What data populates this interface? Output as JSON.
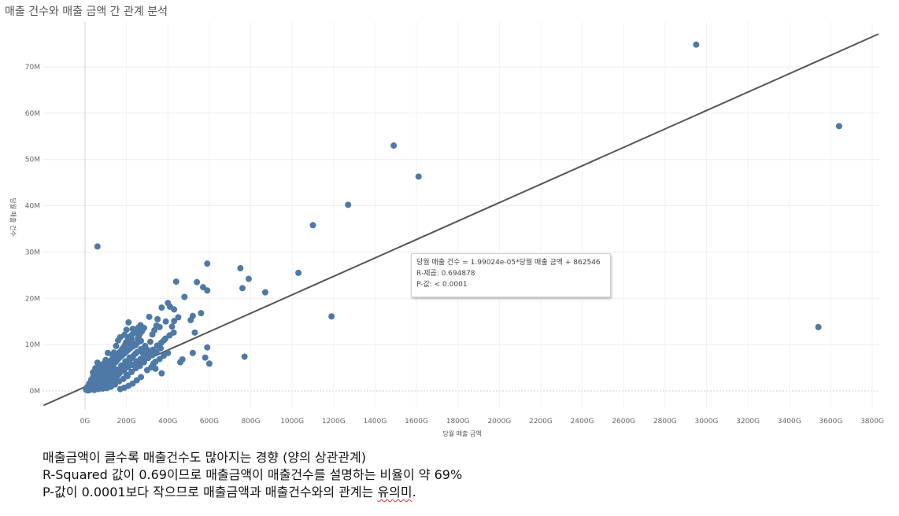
{
  "page": {
    "title": "매출 건수와 매출 금액 간 관계 분석"
  },
  "chart_data": {
    "type": "scatter",
    "title": "매출 건수와 매출 금액 간 관계 분석",
    "xlabel": "당월 매출 금액",
    "ylabel": "당월 매출 건수",
    "xlim": [
      -200,
      3850
    ],
    "ylim": [
      -3,
      78
    ],
    "x_ticks": [
      "0G",
      "200G",
      "400G",
      "600G",
      "800G",
      "1000G",
      "1200G",
      "1400G",
      "1600G",
      "1800G",
      "2000G",
      "2200G",
      "2400G",
      "2600G",
      "2800G",
      "3000G",
      "3200G",
      "3400G",
      "3600G",
      "3800G"
    ],
    "x_tick_values": [
      0,
      200,
      400,
      600,
      800,
      1000,
      1200,
      1400,
      1600,
      1800,
      2000,
      2200,
      2400,
      2600,
      2800,
      3000,
      3200,
      3400,
      3600,
      3800
    ],
    "y_ticks": [
      "0M",
      "10M",
      "20M",
      "30M",
      "40M",
      "50M",
      "60M",
      "70M"
    ],
    "y_tick_values": [
      0,
      10,
      20,
      30,
      40,
      50,
      60,
      70
    ],
    "grid": true,
    "color": "#4e79a7",
    "trendline": {
      "equation": "당월 매출 건수 = 1.99024e-05*당월 매출 금액 + 862546",
      "r_squared": "R-제곱: 0.694878",
      "p_value": "P-값: < 0.0001",
      "slope_per_G": 0.0199024,
      "intercept_M": 0.862546
    },
    "points": [
      [
        2950,
        74.8
      ],
      [
        3640,
        57.2
      ],
      [
        3540,
        13.8
      ],
      [
        1490,
        53
      ],
      [
        1610,
        46.3
      ],
      [
        1270,
        40.2
      ],
      [
        1100,
        35.8
      ],
      [
        1030,
        25.5
      ],
      [
        1190,
        16.1
      ],
      [
        60,
        31.2
      ],
      [
        590,
        27.5
      ],
      [
        750,
        26.5
      ],
      [
        790,
        24.2
      ],
      [
        760,
        22.2
      ],
      [
        870,
        21.3
      ],
      [
        770,
        7.4
      ],
      [
        440,
        23.6
      ],
      [
        540,
        23.5
      ],
      [
        570,
        22.4
      ],
      [
        590,
        21.7
      ],
      [
        480,
        20.3
      ],
      [
        400,
        19
      ],
      [
        410,
        18.2
      ],
      [
        370,
        18
      ],
      [
        430,
        17.6
      ],
      [
        560,
        16.8
      ],
      [
        520,
        16.2
      ],
      [
        510,
        15.3
      ],
      [
        430,
        15.1
      ],
      [
        450,
        15.9
      ],
      [
        390,
        15
      ],
      [
        350,
        15.5
      ],
      [
        310,
        16
      ],
      [
        360,
        13.8
      ],
      [
        420,
        13.9
      ],
      [
        530,
        12.6
      ],
      [
        590,
        9.4
      ],
      [
        580,
        7.2
      ],
      [
        600,
        5.9
      ],
      [
        520,
        8.2
      ],
      [
        470,
        6.8
      ],
      [
        460,
        6.2
      ],
      [
        380,
        10.9
      ],
      [
        370,
        3.8
      ],
      [
        330,
        5.9
      ],
      [
        340,
        4.8
      ],
      [
        280,
        8.1
      ],
      [
        250,
        6
      ],
      [
        270,
        3
      ],
      [
        220,
        5.8
      ],
      [
        200,
        3.5
      ],
      [
        150,
        4.3
      ],
      [
        100,
        4.7
      ],
      [
        120,
        2.5
      ],
      [
        80,
        3.9
      ],
      [
        290,
        9.7
      ],
      [
        270,
        10.8
      ],
      [
        260,
        11.9
      ],
      [
        240,
        12.6
      ],
      [
        230,
        13.4
      ],
      [
        210,
        14.8
      ],
      [
        200,
        13.2
      ],
      [
        190,
        12.1
      ],
      [
        170,
        11.6
      ],
      [
        160,
        10.9
      ],
      [
        150,
        9.7
      ],
      [
        140,
        8.3
      ],
      [
        130,
        7.9
      ],
      [
        110,
        8.2
      ],
      [
        100,
        6.7
      ],
      [
        90,
        5.9
      ],
      [
        70,
        5.6
      ],
      [
        60,
        6.1
      ],
      [
        50,
        4.9
      ],
      [
        40,
        3.2
      ],
      [
        30,
        2.4
      ],
      [
        20,
        1.6
      ],
      [
        10,
        0.8
      ],
      [
        5,
        0.3
      ],
      [
        15,
        0.1
      ],
      [
        25,
        0.6
      ],
      [
        35,
        1.1
      ],
      [
        45,
        1.9
      ],
      [
        55,
        2.7
      ],
      [
        65,
        3.4
      ],
      [
        75,
        2.1
      ],
      [
        85,
        1.3
      ],
      [
        95,
        0.9
      ],
      [
        105,
        1.7
      ],
      [
        115,
        3.1
      ],
      [
        125,
        4.1
      ],
      [
        135,
        5.2
      ],
      [
        145,
        6.1
      ],
      [
        155,
        7.1
      ],
      [
        165,
        7.8
      ],
      [
        175,
        8.6
      ],
      [
        185,
        9.2
      ],
      [
        195,
        10.1
      ],
      [
        205,
        9.6
      ],
      [
        215,
        10.4
      ],
      [
        225,
        11.1
      ],
      [
        235,
        10.3
      ],
      [
        245,
        9.9
      ],
      [
        255,
        11.4
      ],
      [
        265,
        12.3
      ],
      [
        275,
        12.9
      ],
      [
        285,
        13.6
      ],
      [
        295,
        9.1
      ],
      [
        305,
        8.7
      ],
      [
        315,
        10.6
      ],
      [
        325,
        12.2
      ],
      [
        335,
        13.1
      ],
      [
        345,
        14.1
      ],
      [
        215,
        7.2
      ],
      [
        195,
        6.4
      ],
      [
        175,
        5.5
      ],
      [
        155,
        4.6
      ],
      [
        135,
        3.8
      ],
      [
        115,
        2.9
      ],
      [
        95,
        2.2
      ],
      [
        75,
        1.5
      ],
      [
        55,
        0.7
      ],
      [
        45,
        0.2
      ],
      [
        65,
        0.4
      ],
      [
        85,
        0.5
      ],
      [
        105,
        0.6
      ],
      [
        125,
        0.9
      ],
      [
        145,
        1.4
      ],
      [
        165,
        2.1
      ],
      [
        185,
        2.6
      ],
      [
        205,
        3.2
      ],
      [
        225,
        4.1
      ],
      [
        245,
        4.9
      ],
      [
        265,
        5.4
      ],
      [
        285,
        6.2
      ],
      [
        305,
        7.1
      ],
      [
        325,
        7.7
      ],
      [
        345,
        8.4
      ],
      [
        365,
        9.2
      ],
      [
        30,
        0.9
      ],
      [
        40,
        1.4
      ],
      [
        50,
        1.8
      ],
      [
        60,
        2.3
      ],
      [
        70,
        2.8
      ],
      [
        80,
        3.2
      ],
      [
        90,
        3.6
      ],
      [
        100,
        4.1
      ],
      [
        110,
        4.6
      ],
      [
        120,
        5.1
      ],
      [
        130,
        5.6
      ],
      [
        140,
        6.0
      ],
      [
        150,
        6.4
      ],
      [
        160,
        6.9
      ],
      [
        170,
        7.3
      ],
      [
        180,
        7.7
      ],
      [
        190,
        8.1
      ],
      [
        200,
        8.5
      ],
      [
        210,
        8.9
      ],
      [
        220,
        9.3
      ],
      [
        230,
        9.6
      ],
      [
        240,
        10.0
      ],
      [
        250,
        10.3
      ],
      [
        260,
        10.7
      ],
      [
        270,
        9.0
      ],
      [
        12,
        0.4
      ],
      [
        22,
        0.9
      ],
      [
        32,
        1.5
      ],
      [
        42,
        2.1
      ],
      [
        52,
        2.6
      ],
      [
        62,
        3.0
      ],
      [
        72,
        3.3
      ],
      [
        82,
        2.9
      ],
      [
        92,
        2.5
      ],
      [
        102,
        2.0
      ],
      [
        112,
        1.5
      ],
      [
        122,
        1.1
      ],
      [
        132,
        1.8
      ],
      [
        142,
        2.4
      ],
      [
        152,
        3.0
      ],
      [
        162,
        3.6
      ],
      [
        172,
        4.2
      ],
      [
        182,
        4.8
      ],
      [
        192,
        5.4
      ],
      [
        202,
        6.0
      ],
      [
        212,
        6.6
      ],
      [
        222,
        7.0
      ],
      [
        232,
        7.5
      ],
      [
        242,
        8.0
      ],
      [
        252,
        8.4
      ],
      [
        38,
        4.0
      ],
      [
        48,
        4.4
      ],
      [
        58,
        5.0
      ],
      [
        68,
        4.5
      ],
      [
        78,
        5.3
      ],
      [
        88,
        4.9
      ],
      [
        98,
        5.5
      ],
      [
        108,
        5.8
      ],
      [
        118,
        6.3
      ],
      [
        128,
        6.7
      ],
      [
        138,
        7.2
      ],
      [
        148,
        7.6
      ],
      [
        158,
        8.0
      ],
      [
        168,
        8.4
      ],
      [
        178,
        9.0
      ],
      [
        188,
        9.5
      ],
      [
        198,
        10.5
      ],
      [
        208,
        11.2
      ],
      [
        218,
        11.8
      ],
      [
        228,
        12.2
      ],
      [
        238,
        12.8
      ],
      [
        248,
        13.3
      ],
      [
        258,
        13.7
      ],
      [
        268,
        14.2
      ],
      [
        8,
        0.2
      ],
      [
        18,
        0.5
      ],
      [
        28,
        0.3
      ],
      [
        48,
        0.8
      ],
      [
        68,
        1.2
      ],
      [
        88,
        1.8
      ],
      [
        108,
        2.4
      ],
      [
        128,
        2.7
      ],
      [
        148,
        3.3
      ],
      [
        168,
        3.9
      ],
      [
        188,
        4.5
      ],
      [
        208,
        5.1
      ],
      [
        228,
        5.6
      ],
      [
        248,
        6.4
      ],
      [
        268,
        6.9
      ],
      [
        288,
        7.4
      ],
      [
        308,
        8.0
      ],
      [
        328,
        8.9
      ],
      [
        348,
        9.8
      ],
      [
        368,
        10.4
      ],
      [
        388,
        11.3
      ],
      [
        408,
        12.0
      ],
      [
        428,
        12.6
      ],
      [
        300,
        4.5
      ],
      [
        320,
        5.1
      ],
      [
        340,
        6.3
      ],
      [
        360,
        6.9
      ],
      [
        380,
        7.6
      ],
      [
        400,
        8.2
      ],
      [
        250,
        2.3
      ],
      [
        230,
        1.6
      ],
      [
        210,
        1.1
      ],
      [
        190,
        0.7
      ],
      [
        170,
        0.4
      ]
    ]
  },
  "notes": {
    "line1": "매출금액이 클수록 매출건수도 많아지는 경향 (양의 상관관계)",
    "line2": "R-Squared 값이 0.69이므로 매출금액이 매출건수를 설명하는 비율이 약 69%",
    "line3_a": "P-값이 0.0001보다 작으므로 매출금액과 매출건수와의 관계는 ",
    "line3_b": "유의미",
    "line3_c": "."
  }
}
